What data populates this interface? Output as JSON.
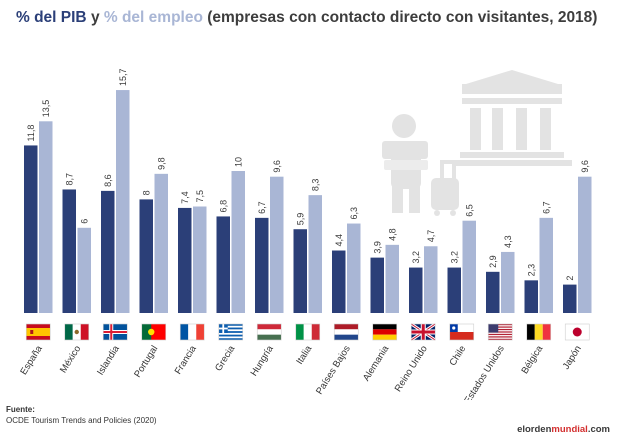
{
  "title": {
    "pib_label": "% del PIB",
    "connector": " y ",
    "empleo_label": "% del empleo",
    "rest": " (empresas con contacto directo con visitantes, 2018)"
  },
  "colors": {
    "pib": "#2b3f78",
    "empleo": "#a9b6d5",
    "background": "#ffffff",
    "illustration": "#e3e3e3"
  },
  "chart_data": {
    "type": "bar",
    "categories": [
      "España",
      "México",
      "Islandia",
      "Portugal",
      "Francia",
      "Grecia",
      "Hungría",
      "Italia",
      "Países Bajos",
      "Alemania",
      "Reino Unido",
      "Chile",
      "Estados Unidos",
      "Bélgica",
      "Japón"
    ],
    "series": [
      {
        "name": "% del PIB",
        "values": [
          11.8,
          8.7,
          8.6,
          8,
          7.4,
          6.8,
          6.7,
          5.9,
          4.4,
          3.9,
          3.2,
          3.2,
          2.9,
          2.3,
          2
        ]
      },
      {
        "name": "% del empleo",
        "values": [
          "13.5",
          "6",
          "15.7",
          "9.8",
          "7.5",
          "10",
          "9.6",
          "8.3",
          "6.3",
          "4.8",
          "4.7",
          "6.5",
          "4.3",
          "6.7",
          "9.6"
        ]
      }
    ],
    "value_labels_pib": [
      "11,8",
      "8,7",
      "8,6",
      "8",
      "7,4",
      "6,8",
      "6,7",
      "5,9",
      "4,4",
      "3,9",
      "3,2",
      "3,2",
      "2,9",
      "2,3",
      "2"
    ],
    "value_labels_empleo": [
      "13,5",
      "6",
      "15,7",
      "9,8",
      "7,5",
      "10",
      "9,6",
      "8,3",
      "6,3",
      "4,8",
      "4,7",
      "6,5",
      "4,3",
      "6,7",
      "9,6"
    ],
    "flags": [
      "flag-spain",
      "flag-mexico",
      "flag-iceland",
      "flag-portugal",
      "flag-france",
      "flag-greece",
      "flag-hungary",
      "flag-italy",
      "flag-netherlands",
      "flag-germany",
      "flag-uk",
      "flag-chile",
      "flag-usa",
      "flag-belgium",
      "flag-japan"
    ],
    "ylim": [
      0,
      17
    ],
    "grid": false,
    "legend": "title"
  },
  "source": {
    "label": "Fuente:",
    "text": "OCDE Tourism Trends and Policies (2020)"
  },
  "brand": {
    "pre": "elorden",
    "mid": "mundial",
    "post": ".com"
  }
}
